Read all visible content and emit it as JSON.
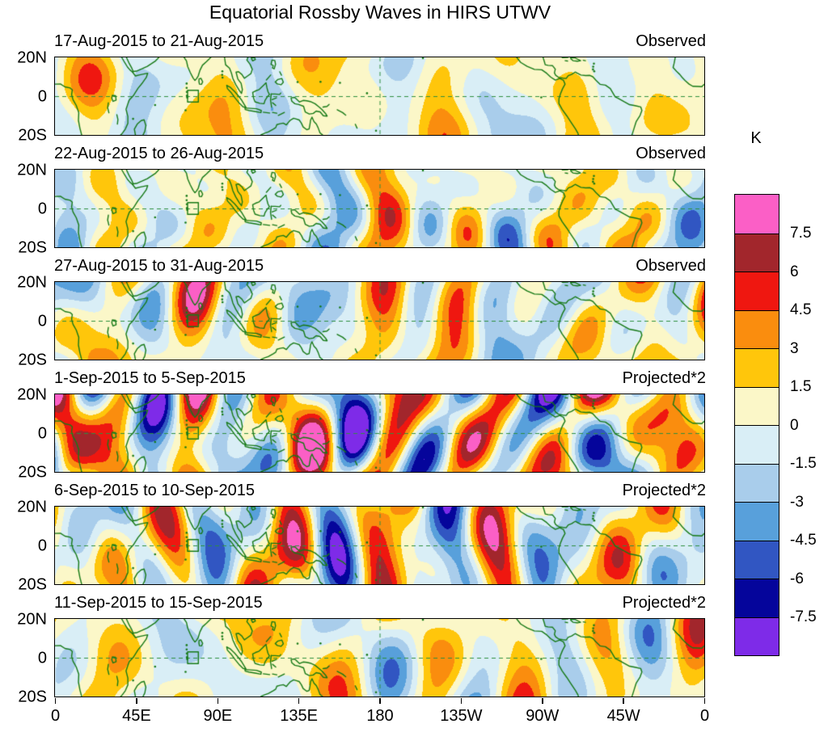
{
  "title": "Equatorial Rossby Waves in HIRS UTWV",
  "chart_data": {
    "type": "heatmap",
    "title": "Equatorial Rossby Waves in HIRS UTWV",
    "panels": [
      {
        "date_range": "17-Aug-2015 to 21-Aug-2015",
        "source_label": "Observed",
        "relative_amplitude": 1.6,
        "seed": 101
      },
      {
        "date_range": "22-Aug-2015 to 26-Aug-2015",
        "source_label": "Observed",
        "relative_amplitude": 2.1,
        "seed": 202
      },
      {
        "date_range": "27-Aug-2015 to 31-Aug-2015",
        "source_label": "Observed",
        "relative_amplitude": 2.6,
        "seed": 303
      },
      {
        "date_range": "1-Sep-2015 to 5-Sep-2015",
        "source_label": "Projected*2",
        "relative_amplitude": 4.6,
        "seed": 404
      },
      {
        "date_range": "6-Sep-2015 to 10-Sep-2015",
        "source_label": "Projected*2",
        "relative_amplitude": 3.3,
        "seed": 505
      },
      {
        "date_range": "11-Sep-2015 to 15-Sep-2015",
        "source_label": "Projected*2",
        "relative_amplitude": 2.0,
        "seed": 606
      }
    ],
    "x_axis": {
      "tick_labels": [
        "0",
        "45E",
        "90E",
        "135E",
        "180",
        "135W",
        "90W",
        "45W",
        "0"
      ],
      "tick_lons": [
        0,
        45,
        90,
        135,
        180,
        225,
        270,
        315,
        360
      ]
    },
    "y_axis": {
      "tick_labels": [
        "20N",
        "0",
        "20S"
      ],
      "tick_lats": [
        20,
        0,
        -20
      ]
    },
    "colorbar": {
      "label": "K",
      "boundary_values": [
        "7.5",
        "6",
        "4.5",
        "3",
        "1.5",
        "0",
        "-1.5",
        "-3",
        "-4.5",
        "-6",
        "-7.5"
      ],
      "colors_top_to_bottom": [
        "#FB5FC6",
        "#A2262C",
        "#EF1710",
        "#FA8D0E",
        "#FFC60B",
        "#FBF7C8",
        "#D9EEF6",
        "#A9CDEB",
        "#58A0DB",
        "#3156C2",
        "#05059B",
        "#7E2BE8"
      ]
    },
    "map_style": {
      "coastline_color": "#177A17",
      "grid_color": "#2E8F3E",
      "equator_gridline": "dashed",
      "dateline_gridline": "dashed",
      "region_box_lon": [
        73.5,
        79.5
      ],
      "region_box_lat": [
        -3,
        3
      ]
    }
  }
}
